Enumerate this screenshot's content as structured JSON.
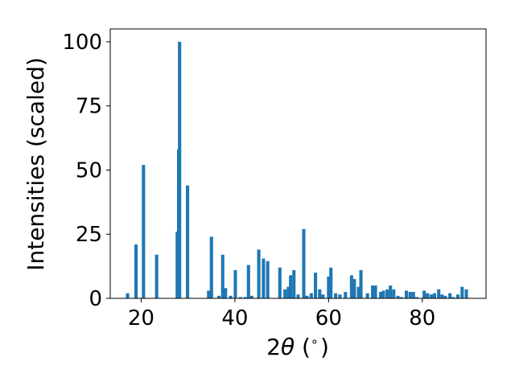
{
  "chart_data": {
    "type": "bar",
    "title": "",
    "xlabel_prefix": "2",
    "xlabel_symbol": "θ",
    "xlabel_suffix": " (",
    "xlabel_degree": "∘",
    "xlabel_close": ")",
    "ylabel": "Intensities (scaled)",
    "xlim": [
      13.4,
      93.6
    ],
    "ylim": [
      0,
      105
    ],
    "xticks": [
      20,
      40,
      60,
      80
    ],
    "yticks": [
      0,
      25,
      50,
      75,
      100
    ],
    "grid": false,
    "legend": "none",
    "bar_width_deg": 0.7,
    "color": "#1f77b4",
    "x": [
      17.1,
      18.9,
      20.5,
      23.3,
      27.7,
      28.0,
      28.2,
      29.9,
      34.4,
      35.0,
      36.6,
      37.4,
      38.0,
      39.1,
      40.1,
      41.2,
      42.2,
      42.9,
      43.6,
      45.1,
      46.1,
      47.0,
      49.6,
      50.7,
      51.4,
      51.9,
      52.6,
      53.5,
      54.7,
      55.4,
      56.3,
      57.2,
      58.1,
      58.8,
      60.0,
      60.5,
      61.5,
      62.4,
      63.6,
      64.9,
      65.5,
      66.4,
      66.9,
      68.3,
      69.4,
      70.0,
      71.1,
      71.7,
      72.5,
      73.2,
      73.9,
      74.8,
      75.5,
      76.6,
      77.4,
      78.1,
      78.8,
      80.4,
      81.1,
      81.9,
      82.6,
      83.5,
      84.2,
      84.9,
      85.9,
      86.6,
      87.6,
      88.5,
      89.4
    ],
    "values": [
      2,
      21,
      52,
      17,
      26,
      58,
      100,
      44,
      3,
      24,
      1,
      17,
      4,
      1,
      11,
      0.5,
      0.5,
      13,
      1,
      19,
      15.5,
      14.5,
      12,
      3.5,
      4.5,
      9,
      11,
      1.5,
      27,
      1,
      2,
      10,
      3.5,
      1.5,
      8.5,
      12,
      2,
      1.5,
      2.5,
      9,
      7.5,
      4.5,
      11,
      2,
      5,
      5,
      2.5,
      3,
      3.5,
      5,
      3.5,
      1,
      0.5,
      3,
      2.5,
      2.5,
      0.5,
      3,
      2,
      1.5,
      2,
      3.5,
      1.5,
      1,
      2,
      0.5,
      1.5,
      4.5,
      3.5
    ]
  }
}
